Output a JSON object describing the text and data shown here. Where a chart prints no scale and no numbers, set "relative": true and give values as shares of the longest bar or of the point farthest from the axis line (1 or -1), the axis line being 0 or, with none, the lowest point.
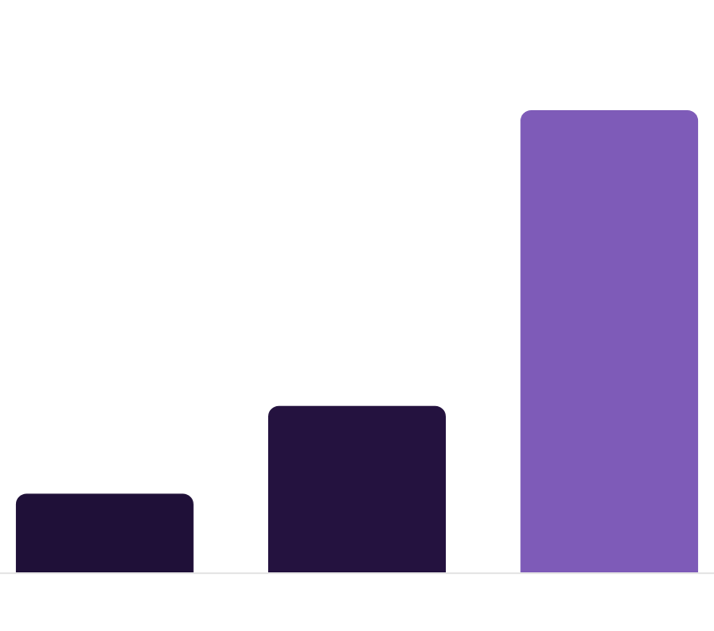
{
  "chart_data": {
    "type": "bar",
    "relative": true,
    "categories": [
      null,
      null,
      null
    ],
    "values": [
      0.17,
      0.36,
      1
    ],
    "colors": [
      "#1f1038",
      "#24123f",
      "#7e5bb8"
    ]
  }
}
